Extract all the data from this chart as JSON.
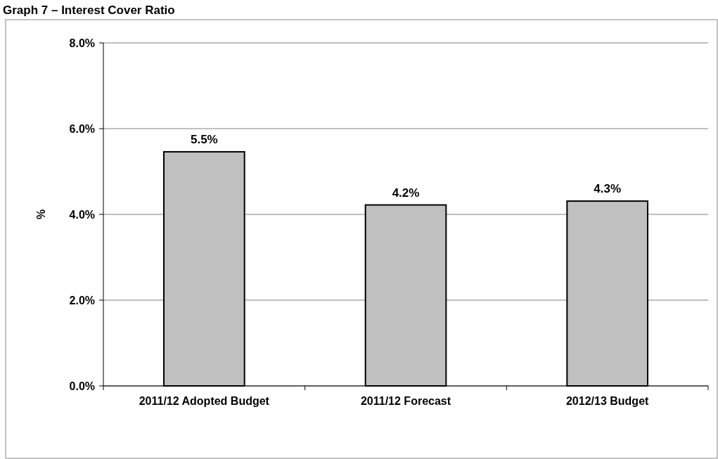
{
  "chart_data": {
    "type": "bar",
    "title": "Graph 7 – Interest Cover Ratio",
    "ylabel": "%",
    "categories": [
      "2011/12 Adopted Budget",
      "2011/12 Forecast",
      "2012/13 Budget"
    ],
    "values": [
      5.46,
      4.22,
      4.31
    ],
    "value_labels": [
      "5.5%",
      "4.2%",
      "4.3%"
    ],
    "color": "#c0c0c0",
    "ylim": [
      0,
      8
    ],
    "yticks": [
      {
        "value": 0,
        "label": "0.0%"
      },
      {
        "value": 2,
        "label": "2.0%"
      },
      {
        "value": 4,
        "label": "4.0%"
      },
      {
        "value": 6,
        "label": "6.0%"
      },
      {
        "value": 8,
        "label": "8.0%"
      }
    ],
    "grid": "y"
  }
}
